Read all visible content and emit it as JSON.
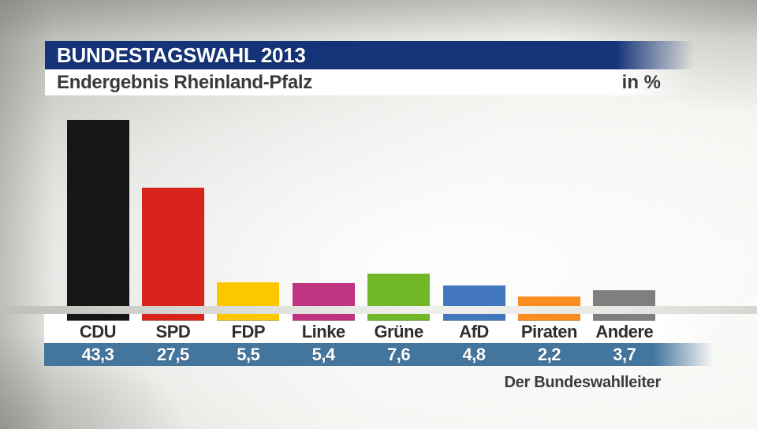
{
  "header": {
    "title": "BUNDESTAGSWAHL 2013",
    "subtitle": "Endergebnis Rheinland-Pfalz",
    "unit_label": "in %"
  },
  "source": "Der Bundeswahlleiter",
  "colors": {
    "header_bg": "#143378",
    "subtitle_band_bg": "#ffffff",
    "value_band_bg": "#44759d",
    "baseline_stripe": "#e0e0dc",
    "label_text": "#2e2e2e",
    "value_text": "#ffffff"
  },
  "chart_data": {
    "type": "bar",
    "title": "Endergebnis Rheinland-Pfalz",
    "context": "Bundestagswahl 2013",
    "unit": "in %",
    "categories": [
      "CDU",
      "SPD",
      "FDP",
      "Linke",
      "Grüne",
      "AfD",
      "Piraten",
      "Andere"
    ],
    "values": [
      43.3,
      27.5,
      5.5,
      5.4,
      7.6,
      4.8,
      2.2,
      3.7
    ],
    "value_labels": [
      "43,3",
      "27,5",
      "5,5",
      "5,4",
      "7,6",
      "4,8",
      "2,2",
      "3,7"
    ],
    "bar_colors": [
      "#161614",
      "#d9241e",
      "#fdc700",
      "#c03381",
      "#72b728",
      "#4377bd",
      "#fb8d20",
      "#7e7f81"
    ],
    "ylim": [
      0,
      45
    ],
    "grid": false,
    "legend": false,
    "axes_visible": false,
    "source": "Der Bundeswahlleiter"
  }
}
